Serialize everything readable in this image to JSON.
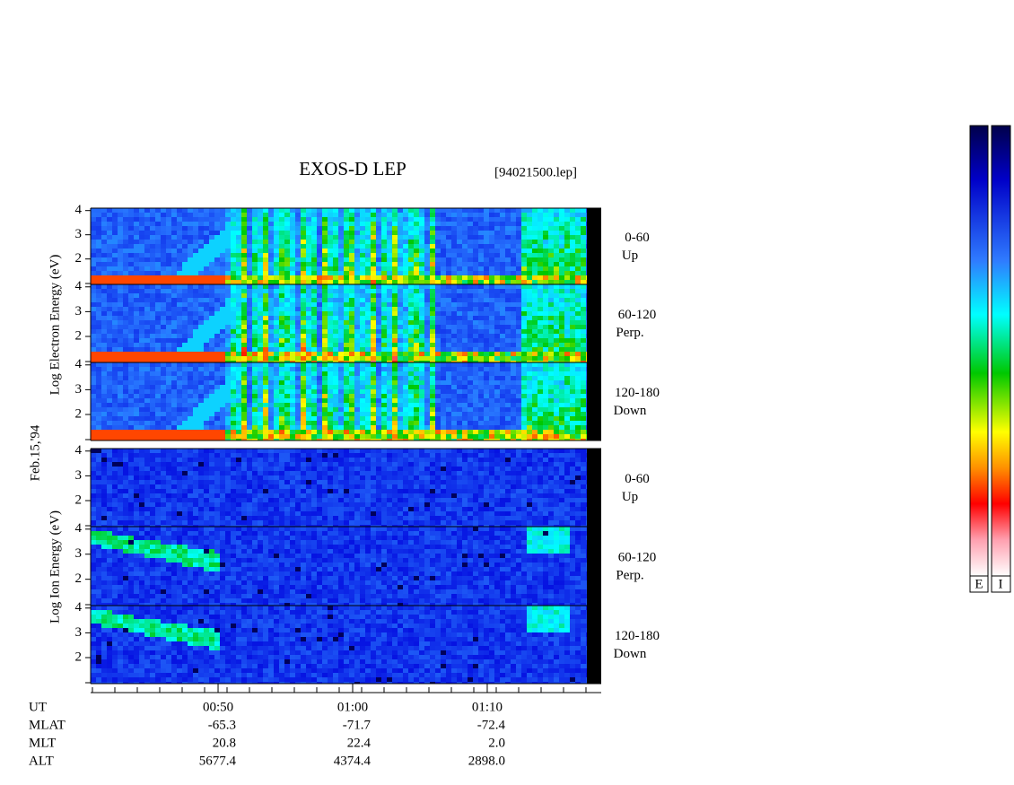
{
  "title": "EXOS-D LEP",
  "file": "[94021500.lep]",
  "date": "Feb.15,'94",
  "electron": {
    "axis_label": "Log Electron Energy (eV)",
    "panels": [
      {
        "pitch": "0-60",
        "dir": "Up"
      },
      {
        "pitch": "60-120",
        "dir": "Perp."
      },
      {
        "pitch": "120-180",
        "dir": "Down"
      }
    ]
  },
  "ion": {
    "axis_label": "Log Ion Energy (eV)",
    "panels": [
      {
        "pitch": "0-60",
        "dir": "Up"
      },
      {
        "pitch": "60-120",
        "dir": "Perp."
      },
      {
        "pitch": "120-180",
        "dir": "Down"
      }
    ]
  },
  "energy_axis": {
    "ylim": [
      0.95,
      4.1
    ],
    "yticks": [
      2,
      3,
      4
    ]
  },
  "time_axis": {
    "xlim": [
      40.53,
      78.47
    ],
    "xticks": [
      {
        "value": 50,
        "label": "00:50"
      },
      {
        "value": 60,
        "label": "01:00"
      },
      {
        "value": 70,
        "label": "01:10"
      }
    ]
  },
  "ephemeris": {
    "labels": [
      "UT",
      "MLAT",
      "MLT",
      "ALT"
    ],
    "rows": [
      [
        "-65.3",
        "-71.7",
        "-72.4"
      ],
      [
        "20.8",
        "22.4",
        "2.0"
      ],
      [
        "5677.4",
        "4374.4",
        "2898.0"
      ]
    ]
  },
  "colorbar": {
    "labels": [
      "E",
      "I"
    ]
  }
}
